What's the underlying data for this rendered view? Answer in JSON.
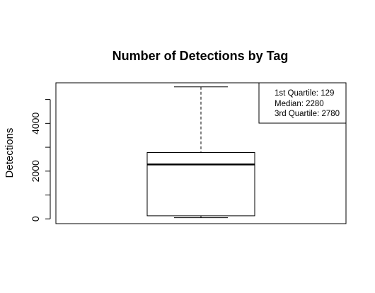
{
  "chart_data": {
    "type": "box",
    "title": "Number of Detections by Tag",
    "xlabel": "",
    "ylabel": "Detections",
    "ylim": [
      -200,
      5700
    ],
    "yticks": [
      0,
      1000,
      2000,
      3000,
      4000,
      5000
    ],
    "ytick_labels": [
      "0",
      "",
      "2000",
      "",
      "4000",
      ""
    ],
    "box": {
      "whisker_low": 50,
      "q1": 129,
      "median": 2280,
      "q3": 2780,
      "whisker_high": 5530
    },
    "grid": false,
    "legend_position": "top-right",
    "legend": [
      "1st Quartile: 129",
      "Median: 2280",
      "3rd Quartile: 2780"
    ]
  }
}
